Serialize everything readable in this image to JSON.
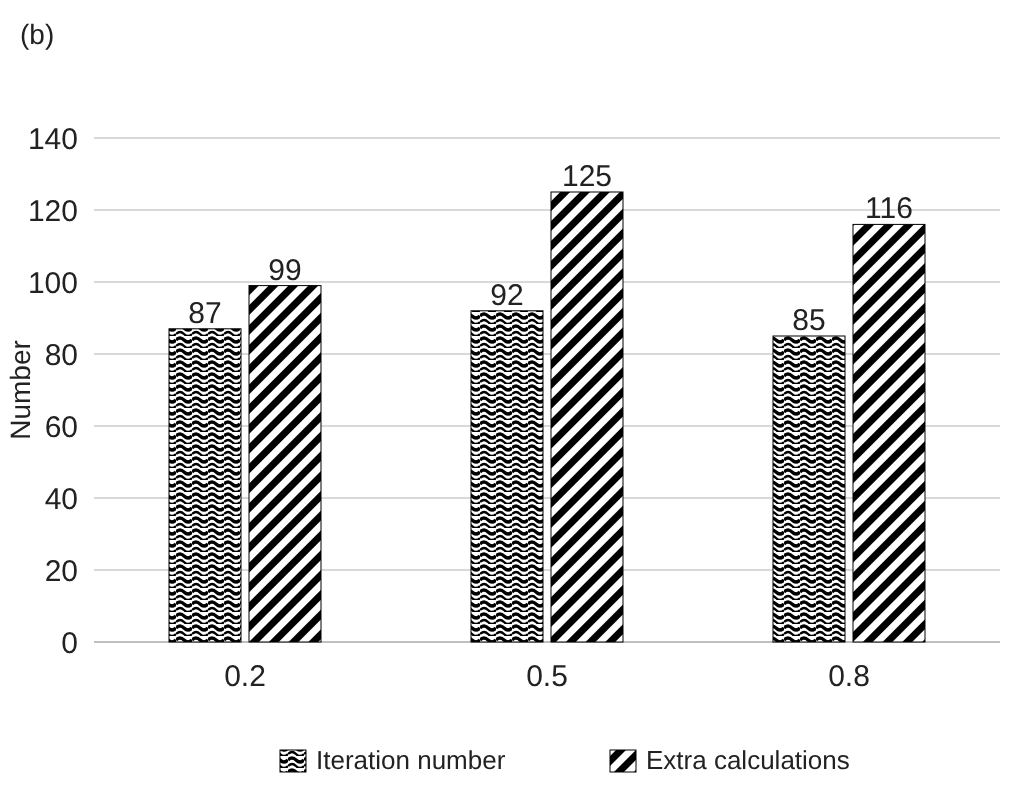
{
  "chart_data": {
    "type": "bar",
    "ylabel": "Number",
    "annotations": [
      "(b)"
    ],
    "categories": [
      "0.2",
      "0.5",
      "0.8"
    ],
    "series": [
      {
        "name": "Iteration number",
        "color": "#000000",
        "values": [
          87,
          92,
          85
        ]
      },
      {
        "name": "Extra calculations",
        "color": "#000000",
        "values": [
          99,
          125,
          116
        ]
      }
    ],
    "ylim": [
      0,
      140
    ],
    "yticks": [
      0,
      20,
      40,
      60,
      80,
      100,
      120,
      140
    ],
    "grid": "y",
    "data_labels": true,
    "legend": "bottom"
  }
}
